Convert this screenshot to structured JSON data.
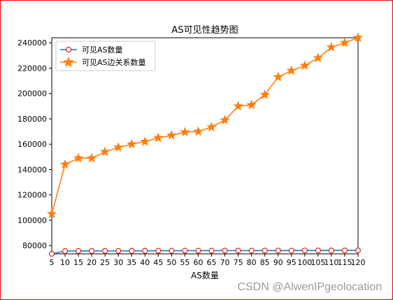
{
  "chart_data": {
    "type": "line",
    "title": "AS可见性趋势图",
    "xlabel": "AS数量",
    "ylabel": "",
    "x": [
      5,
      10,
      15,
      20,
      25,
      30,
      35,
      40,
      45,
      50,
      55,
      60,
      65,
      70,
      75,
      80,
      85,
      90,
      95,
      100,
      105,
      110,
      115,
      120
    ],
    "xlim": [
      5,
      120
    ],
    "ylim": [
      73500,
      244000
    ],
    "yticks": [
      80000,
      100000,
      120000,
      140000,
      160000,
      180000,
      200000,
      220000,
      240000
    ],
    "grid": false,
    "legend_position": "top-left",
    "series": [
      {
        "name": "可见AS数量",
        "color": "#1f77b4",
        "marker": "circle",
        "values": [
          73500,
          75700,
          75800,
          75800,
          75850,
          75850,
          75900,
          75900,
          75950,
          75950,
          76000,
          76000,
          76000,
          76050,
          76050,
          76050,
          76100,
          76100,
          76100,
          76150,
          76150,
          76150,
          76200,
          76200
        ]
      },
      {
        "name": "可见AS边关系数量",
        "color": "#ff7f0e",
        "marker": "star",
        "values": [
          105000,
          144000,
          149000,
          149000,
          154000,
          157500,
          160000,
          162000,
          165000,
          167000,
          169500,
          170000,
          173500,
          179000,
          190000,
          191000,
          199000,
          213000,
          218000,
          222000,
          228000,
          236500,
          240000,
          244000
        ]
      }
    ]
  },
  "watermark": "CSDN @AlwenIPgeolocation"
}
